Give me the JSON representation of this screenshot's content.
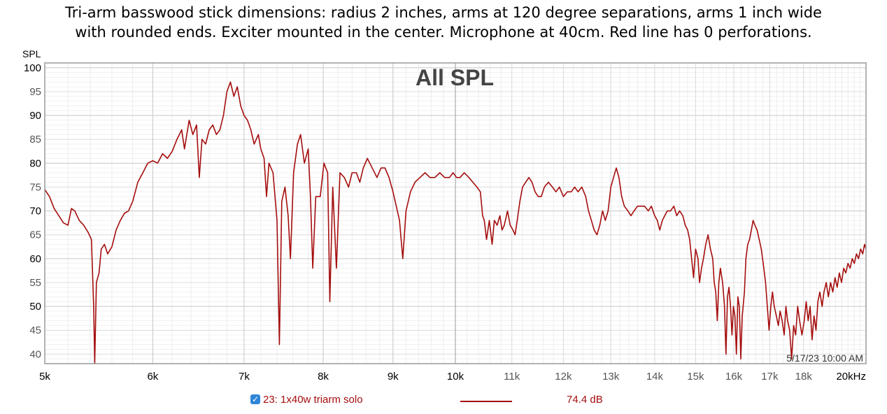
{
  "caption": {
    "line1": "Tri-arm basswood stick dimensions: radius 2 inches, arms at 120 degree separations, arms 1 inch wide",
    "line2": "with rounded ends. Exciter mounted in the center. Microphone at 40cm. Red line has 0 perforations."
  },
  "legend": {
    "checkbox": "checked",
    "name": "23: 1x40w triarm solo",
    "value": "74.4 dB",
    "color": "#a50d0d"
  },
  "chart_data": {
    "type": "line",
    "title": "All SPL",
    "ylabel": "SPL",
    "xlabel": "",
    "x_scale": "log",
    "xlim": [
      5000,
      20000
    ],
    "ylim": [
      38,
      101
    ],
    "timestamp": "5/17/23 10:00 AM",
    "x_ticks": [
      {
        "value": 5000,
        "label": "5k",
        "major": true
      },
      {
        "value": 6000,
        "label": "6k",
        "major": true
      },
      {
        "value": 7000,
        "label": "7k",
        "major": true
      },
      {
        "value": 8000,
        "label": "8k",
        "major": true
      },
      {
        "value": 9000,
        "label": "9k",
        "major": true
      },
      {
        "value": 10000,
        "label": "10k",
        "major": true
      },
      {
        "value": 11000,
        "label": "11k",
        "major": false
      },
      {
        "value": 12000,
        "label": "12k",
        "major": false
      },
      {
        "value": 13000,
        "label": "13k",
        "major": false
      },
      {
        "value": 14000,
        "label": "14k",
        "major": false
      },
      {
        "value": 15000,
        "label": "15k",
        "major": false
      },
      {
        "value": 16000,
        "label": "16k",
        "major": false
      },
      {
        "value": 17000,
        "label": "17k",
        "major": false
      },
      {
        "value": 18000,
        "label": "18k",
        "major": false
      },
      {
        "value": 20000,
        "label": "20kHz",
        "major": true
      }
    ],
    "y_ticks": [
      {
        "value": 40,
        "label": "40",
        "major": false
      },
      {
        "value": 45,
        "label": "45",
        "major": false
      },
      {
        "value": 50,
        "label": "50",
        "major": true
      },
      {
        "value": 55,
        "label": "55",
        "major": false
      },
      {
        "value": 60,
        "label": "60",
        "major": true
      },
      {
        "value": 65,
        "label": "65",
        "major": false
      },
      {
        "value": 70,
        "label": "70",
        "major": true
      },
      {
        "value": 75,
        "label": "75",
        "major": false
      },
      {
        "value": 80,
        "label": "80",
        "major": true
      },
      {
        "value": 85,
        "label": "85",
        "major": false
      },
      {
        "value": 90,
        "label": "90",
        "major": true
      },
      {
        "value": 95,
        "label": "95",
        "major": false
      },
      {
        "value": 100,
        "label": "100",
        "major": true
      }
    ],
    "series": [
      {
        "name": "23: 1x40w triarm solo",
        "color": "#a50d0d",
        "points": [
          [
            5000,
            74.5
          ],
          [
            5040,
            73
          ],
          [
            5080,
            70.5
          ],
          [
            5120,
            69
          ],
          [
            5160,
            67.5
          ],
          [
            5200,
            67
          ],
          [
            5230,
            70.5
          ],
          [
            5260,
            70
          ],
          [
            5300,
            68
          ],
          [
            5340,
            67
          ],
          [
            5380,
            65.5
          ],
          [
            5410,
            64
          ],
          [
            5430,
            50
          ],
          [
            5440,
            38
          ],
          [
            5455,
            55
          ],
          [
            5480,
            57
          ],
          [
            5500,
            62
          ],
          [
            5530,
            63
          ],
          [
            5560,
            61
          ],
          [
            5600,
            62.5
          ],
          [
            5640,
            66
          ],
          [
            5680,
            68
          ],
          [
            5720,
            69.5
          ],
          [
            5760,
            70
          ],
          [
            5800,
            72
          ],
          [
            5850,
            76
          ],
          [
            5900,
            78
          ],
          [
            5950,
            80
          ],
          [
            6000,
            80.5
          ],
          [
            6050,
            80
          ],
          [
            6100,
            82
          ],
          [
            6150,
            81
          ],
          [
            6200,
            82.5
          ],
          [
            6250,
            85
          ],
          [
            6300,
            87
          ],
          [
            6330,
            83
          ],
          [
            6380,
            89
          ],
          [
            6420,
            86
          ],
          [
            6460,
            88
          ],
          [
            6490,
            77
          ],
          [
            6520,
            85
          ],
          [
            6560,
            84
          ],
          [
            6600,
            87
          ],
          [
            6640,
            88
          ],
          [
            6680,
            86
          ],
          [
            6720,
            87
          ],
          [
            6760,
            90
          ],
          [
            6800,
            95
          ],
          [
            6840,
            97
          ],
          [
            6880,
            94
          ],
          [
            6920,
            96
          ],
          [
            6960,
            92
          ],
          [
            7000,
            90
          ],
          [
            7040,
            89
          ],
          [
            7080,
            87
          ],
          [
            7120,
            84
          ],
          [
            7170,
            86
          ],
          [
            7200,
            83
          ],
          [
            7240,
            81
          ],
          [
            7270,
            73
          ],
          [
            7300,
            80
          ],
          [
            7350,
            78
          ],
          [
            7400,
            68
          ],
          [
            7430,
            42
          ],
          [
            7460,
            72
          ],
          [
            7500,
            75
          ],
          [
            7540,
            69
          ],
          [
            7570,
            60
          ],
          [
            7610,
            78
          ],
          [
            7660,
            84
          ],
          [
            7700,
            86
          ],
          [
            7750,
            80
          ],
          [
            7800,
            83
          ],
          [
            7830,
            73
          ],
          [
            7860,
            58
          ],
          [
            7900,
            73
          ],
          [
            7960,
            73
          ],
          [
            8010,
            80
          ],
          [
            8060,
            78
          ],
          [
            8090,
            51
          ],
          [
            8130,
            75
          ],
          [
            8180,
            58
          ],
          [
            8230,
            78
          ],
          [
            8290,
            77
          ],
          [
            8350,
            75
          ],
          [
            8400,
            78
          ],
          [
            8460,
            78
          ],
          [
            8510,
            76
          ],
          [
            8560,
            79
          ],
          [
            8620,
            81
          ],
          [
            8690,
            79
          ],
          [
            8760,
            77
          ],
          [
            8820,
            79
          ],
          [
            8880,
            79
          ],
          [
            8940,
            77
          ],
          [
            9000,
            74
          ],
          [
            9050,
            71
          ],
          [
            9100,
            68
          ],
          [
            9150,
            60
          ],
          [
            9200,
            70
          ],
          [
            9270,
            74
          ],
          [
            9340,
            76
          ],
          [
            9420,
            77
          ],
          [
            9500,
            78
          ],
          [
            9580,
            77
          ],
          [
            9660,
            77
          ],
          [
            9740,
            78
          ],
          [
            9820,
            77
          ],
          [
            9900,
            77
          ],
          [
            9960,
            78
          ],
          [
            10020,
            77
          ],
          [
            10080,
            77
          ],
          [
            10150,
            78
          ],
          [
            10230,
            77
          ],
          [
            10300,
            76
          ],
          [
            10370,
            75
          ],
          [
            10430,
            74
          ],
          [
            10470,
            69
          ],
          [
            10500,
            68
          ],
          [
            10540,
            64
          ],
          [
            10590,
            68
          ],
          [
            10640,
            63
          ],
          [
            10680,
            68
          ],
          [
            10730,
            67
          ],
          [
            10780,
            69
          ],
          [
            10820,
            66
          ],
          [
            10860,
            67
          ],
          [
            10920,
            70
          ],
          [
            10970,
            67
          ],
          [
            11020,
            66
          ],
          [
            11060,
            65
          ],
          [
            11100,
            68
          ],
          [
            11150,
            72
          ],
          [
            11200,
            75
          ],
          [
            11260,
            76
          ],
          [
            11320,
            77
          ],
          [
            11380,
            76
          ],
          [
            11440,
            74
          ],
          [
            11500,
            73
          ],
          [
            11560,
            73
          ],
          [
            11620,
            75
          ],
          [
            11700,
            76
          ],
          [
            11780,
            75
          ],
          [
            11850,
            74
          ],
          [
            11920,
            75
          ],
          [
            12000,
            73
          ],
          [
            12080,
            74
          ],
          [
            12160,
            74
          ],
          [
            12230,
            75
          ],
          [
            12300,
            74
          ],
          [
            12380,
            75
          ],
          [
            12460,
            73
          ],
          [
            12520,
            70
          ],
          [
            12580,
            68
          ],
          [
            12640,
            66
          ],
          [
            12700,
            65
          ],
          [
            12760,
            67
          ],
          [
            12820,
            70
          ],
          [
            12880,
            68
          ],
          [
            12940,
            70
          ],
          [
            13000,
            75
          ],
          [
            13060,
            77
          ],
          [
            13120,
            79
          ],
          [
            13180,
            77
          ],
          [
            13240,
            73
          ],
          [
            13300,
            71
          ],
          [
            13380,
            70
          ],
          [
            13450,
            69
          ],
          [
            13520,
            70
          ],
          [
            13600,
            71
          ],
          [
            13680,
            71
          ],
          [
            13760,
            71
          ],
          [
            13850,
            70
          ],
          [
            13920,
            71
          ],
          [
            14000,
            69
          ],
          [
            14060,
            68
          ],
          [
            14120,
            66
          ],
          [
            14180,
            68
          ],
          [
            14240,
            69
          ],
          [
            14300,
            70
          ],
          [
            14380,
            70
          ],
          [
            14460,
            71
          ],
          [
            14530,
            69
          ],
          [
            14600,
            70
          ],
          [
            14680,
            69
          ],
          [
            14740,
            67
          ],
          [
            14800,
            66
          ],
          [
            14850,
            64
          ],
          [
            14900,
            60
          ],
          [
            14950,
            56
          ],
          [
            15000,
            62
          ],
          [
            15060,
            60
          ],
          [
            15100,
            55
          ],
          [
            15150,
            58
          ],
          [
            15200,
            60
          ],
          [
            15260,
            63
          ],
          [
            15320,
            65
          ],
          [
            15380,
            62
          ],
          [
            15440,
            60
          ],
          [
            15480,
            55
          ],
          [
            15520,
            53
          ],
          [
            15560,
            47
          ],
          [
            15600,
            55
          ],
          [
            15640,
            58
          ],
          [
            15700,
            55
          ],
          [
            15750,
            50
          ],
          [
            15790,
            40
          ],
          [
            15830,
            52
          ],
          [
            15870,
            54
          ],
          [
            15910,
            50
          ],
          [
            15950,
            44
          ],
          [
            15990,
            50
          ],
          [
            16030,
            48
          ],
          [
            16070,
            40
          ],
          [
            16110,
            52
          ],
          [
            16150,
            50
          ],
          [
            16190,
            39
          ],
          [
            16230,
            48
          ],
          [
            16290,
            53
          ],
          [
            16330,
            60
          ],
          [
            16380,
            63
          ],
          [
            16430,
            64
          ],
          [
            16480,
            66
          ],
          [
            16530,
            68
          ],
          [
            16580,
            67
          ],
          [
            16640,
            66
          ],
          [
            16700,
            64
          ],
          [
            16760,
            62
          ],
          [
            16830,
            58
          ],
          [
            16880,
            55
          ],
          [
            16930,
            50
          ],
          [
            16980,
            45
          ],
          [
            17030,
            50
          ],
          [
            17080,
            53
          ],
          [
            17130,
            50
          ],
          [
            17190,
            48
          ],
          [
            17250,
            46
          ],
          [
            17300,
            49
          ],
          [
            17360,
            47
          ],
          [
            17420,
            44
          ],
          [
            17470,
            50
          ],
          [
            17520,
            47
          ],
          [
            17580,
            45
          ],
          [
            17640,
            39
          ],
          [
            17700,
            46
          ],
          [
            17760,
            44
          ],
          [
            17820,
            50
          ],
          [
            17880,
            47
          ],
          [
            17950,
            44
          ],
          [
            18020,
            47
          ],
          [
            18080,
            51
          ],
          [
            18140,
            47
          ],
          [
            18200,
            50
          ],
          [
            18260,
            43
          ],
          [
            18320,
            48
          ],
          [
            18380,
            45
          ],
          [
            18440,
            51
          ],
          [
            18500,
            53
          ],
          [
            18570,
            50
          ],
          [
            18630,
            53
          ],
          [
            18700,
            55
          ],
          [
            18770,
            52
          ],
          [
            18840,
            55
          ],
          [
            18910,
            53
          ],
          [
            18980,
            56
          ],
          [
            19050,
            54
          ],
          [
            19120,
            57
          ],
          [
            19190,
            55
          ],
          [
            19260,
            58
          ],
          [
            19330,
            57
          ],
          [
            19400,
            59
          ],
          [
            19470,
            58
          ],
          [
            19540,
            60
          ],
          [
            19610,
            59
          ],
          [
            19680,
            61
          ],
          [
            19750,
            60
          ],
          [
            19820,
            62
          ],
          [
            19890,
            61
          ],
          [
            19950,
            63
          ],
          [
            20000,
            62
          ]
        ]
      }
    ]
  }
}
